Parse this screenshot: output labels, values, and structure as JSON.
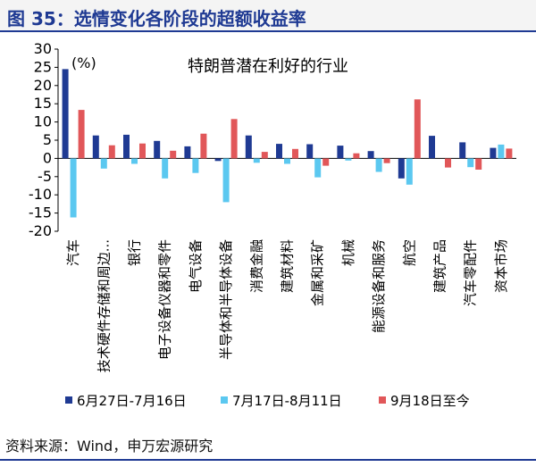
{
  "header": {
    "title": "图 35：选情变化各阶段的超额收益率"
  },
  "source": "资料来源：Wind，申万宏源研究",
  "chart_data": {
    "type": "bar",
    "title": "特朗普潜在利好的行业",
    "unit_label": "(%)",
    "ylim": [
      -20,
      30
    ],
    "yticks": [
      30,
      25,
      20,
      15,
      10,
      5,
      0,
      -5,
      -10,
      -15,
      -20
    ],
    "grid": false,
    "legend_position": "bottom",
    "categories": [
      "汽车",
      "技术硬件存储和周边...",
      "银行",
      "电子设备仪器和零件",
      "电气设备",
      "半导体和半导体设备",
      "消费金融",
      "建筑材料",
      "金属和采矿",
      "机械",
      "能源设备和服务",
      "航空",
      "建筑产品",
      "汽车零配件",
      "资本市场"
    ],
    "series": [
      {
        "name": "6月27日-7月16日",
        "color": "#1f3a93",
        "values": [
          24.5,
          6.3,
          6.5,
          4.8,
          3.3,
          -0.7,
          6.3,
          4.0,
          3.9,
          3.5,
          2.0,
          -5.5,
          6.2,
          4.4,
          2.9
        ]
      },
      {
        "name": "7月17日-8月11日",
        "color": "#5bc8f0",
        "values": [
          -16.2,
          -2.8,
          -1.5,
          -5.5,
          -4.0,
          -12.0,
          -1.2,
          -1.5,
          -5.2,
          -0.6,
          -3.7,
          -7.2,
          0.0,
          -2.4,
          3.8
        ]
      },
      {
        "name": "9月18日至今",
        "color": "#e15759",
        "values": [
          13.3,
          3.6,
          4.1,
          2.1,
          6.8,
          10.8,
          1.8,
          2.6,
          -2.0,
          1.4,
          -1.3,
          16.2,
          -2.5,
          -3.1,
          2.7
        ]
      }
    ]
  }
}
